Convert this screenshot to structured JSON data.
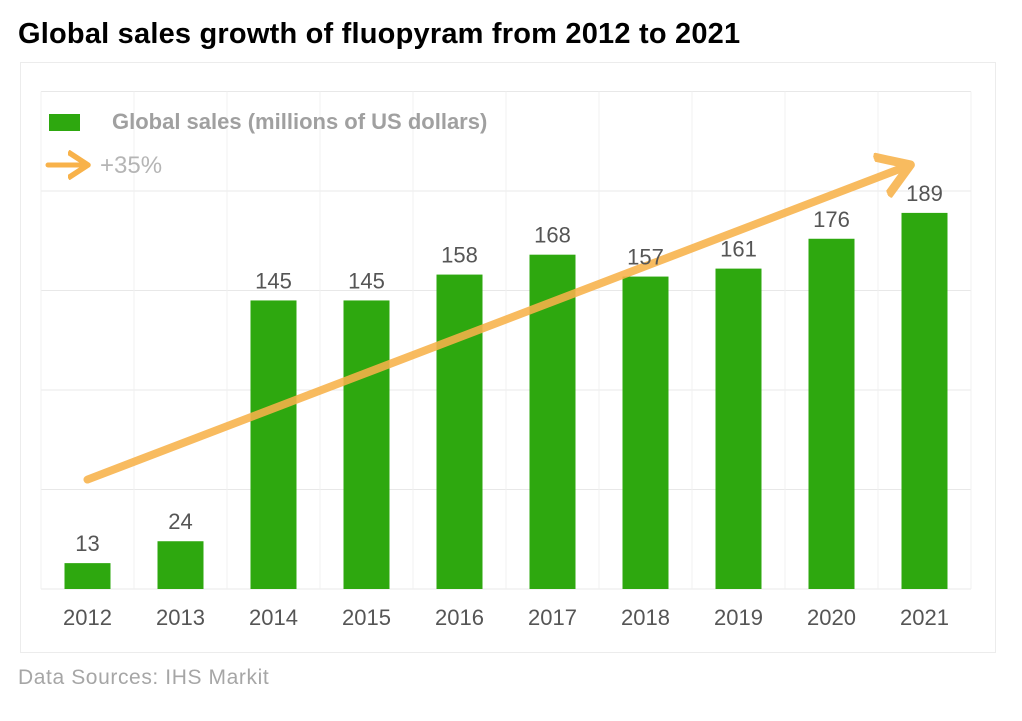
{
  "title": "Global sales growth of fluopyram from 2012 to 2021",
  "source": "Data Sources: IHS Markit",
  "colors": {
    "bar": "#2ea80f",
    "trend": "#f8b24a",
    "grid": "#e8e8e8",
    "axis_text": "#555555",
    "legend_text": "#a0a0a0"
  },
  "chart_data": {
    "type": "bar",
    "title": "Global sales growth of fluopyram from 2012 to 2021",
    "categories": [
      "2012",
      "2013",
      "2014",
      "2015",
      "2016",
      "2017",
      "2018",
      "2019",
      "2020",
      "2021"
    ],
    "series": [
      {
        "name": "Global sales (millions of US dollars)",
        "values": [
          13,
          24,
          145,
          145,
          158,
          168,
          157,
          161,
          176,
          189
        ]
      }
    ],
    "data_labels": [
      "13",
      "24",
      "145",
      "145",
      "158",
      "168",
      "157",
      "161",
      "176",
      "189"
    ],
    "trend": {
      "label": "+35%",
      "from": 55,
      "to": 212
    },
    "ylim": [
      0,
      250
    ],
    "grid": true,
    "legend_position": "top-left"
  }
}
